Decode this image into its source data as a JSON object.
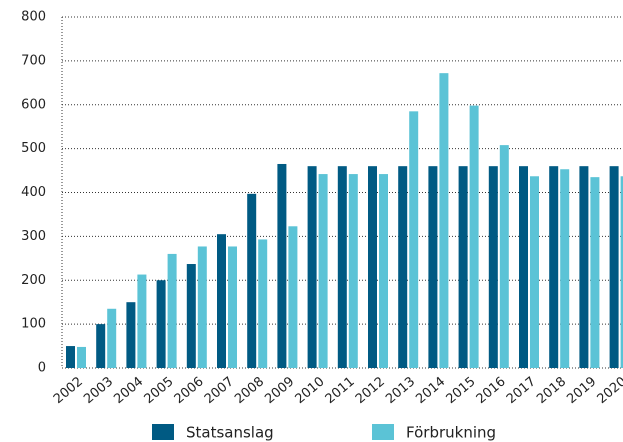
{
  "chart_data": {
    "type": "bar",
    "categories": [
      "2002",
      "2003",
      "2004",
      "2005",
      "2006",
      "2007",
      "2008",
      "2009",
      "2010",
      "2011",
      "2012",
      "2013",
      "2014",
      "2015",
      "2016",
      "2017",
      "2018",
      "2019",
      "2020"
    ],
    "series": [
      {
        "name": "Statsanslag",
        "color": "#005a83",
        "values": [
          50,
          100,
          150,
          200,
          237,
          305,
          397,
          465,
          460,
          460,
          460,
          460,
          460,
          460,
          460,
          460,
          460,
          460,
          460
        ]
      },
      {
        "name": "Förbrukning",
        "color": "#5bc3d6",
        "values": [
          48,
          135,
          213,
          260,
          277,
          277,
          293,
          323,
          442,
          442,
          442,
          585,
          672,
          598,
          508,
          437,
          453,
          435,
          437
        ]
      }
    ],
    "ylim": [
      0,
      800
    ],
    "yticks": [
      0,
      100,
      200,
      300,
      400,
      500,
      600,
      700,
      800
    ],
    "grid": true
  }
}
